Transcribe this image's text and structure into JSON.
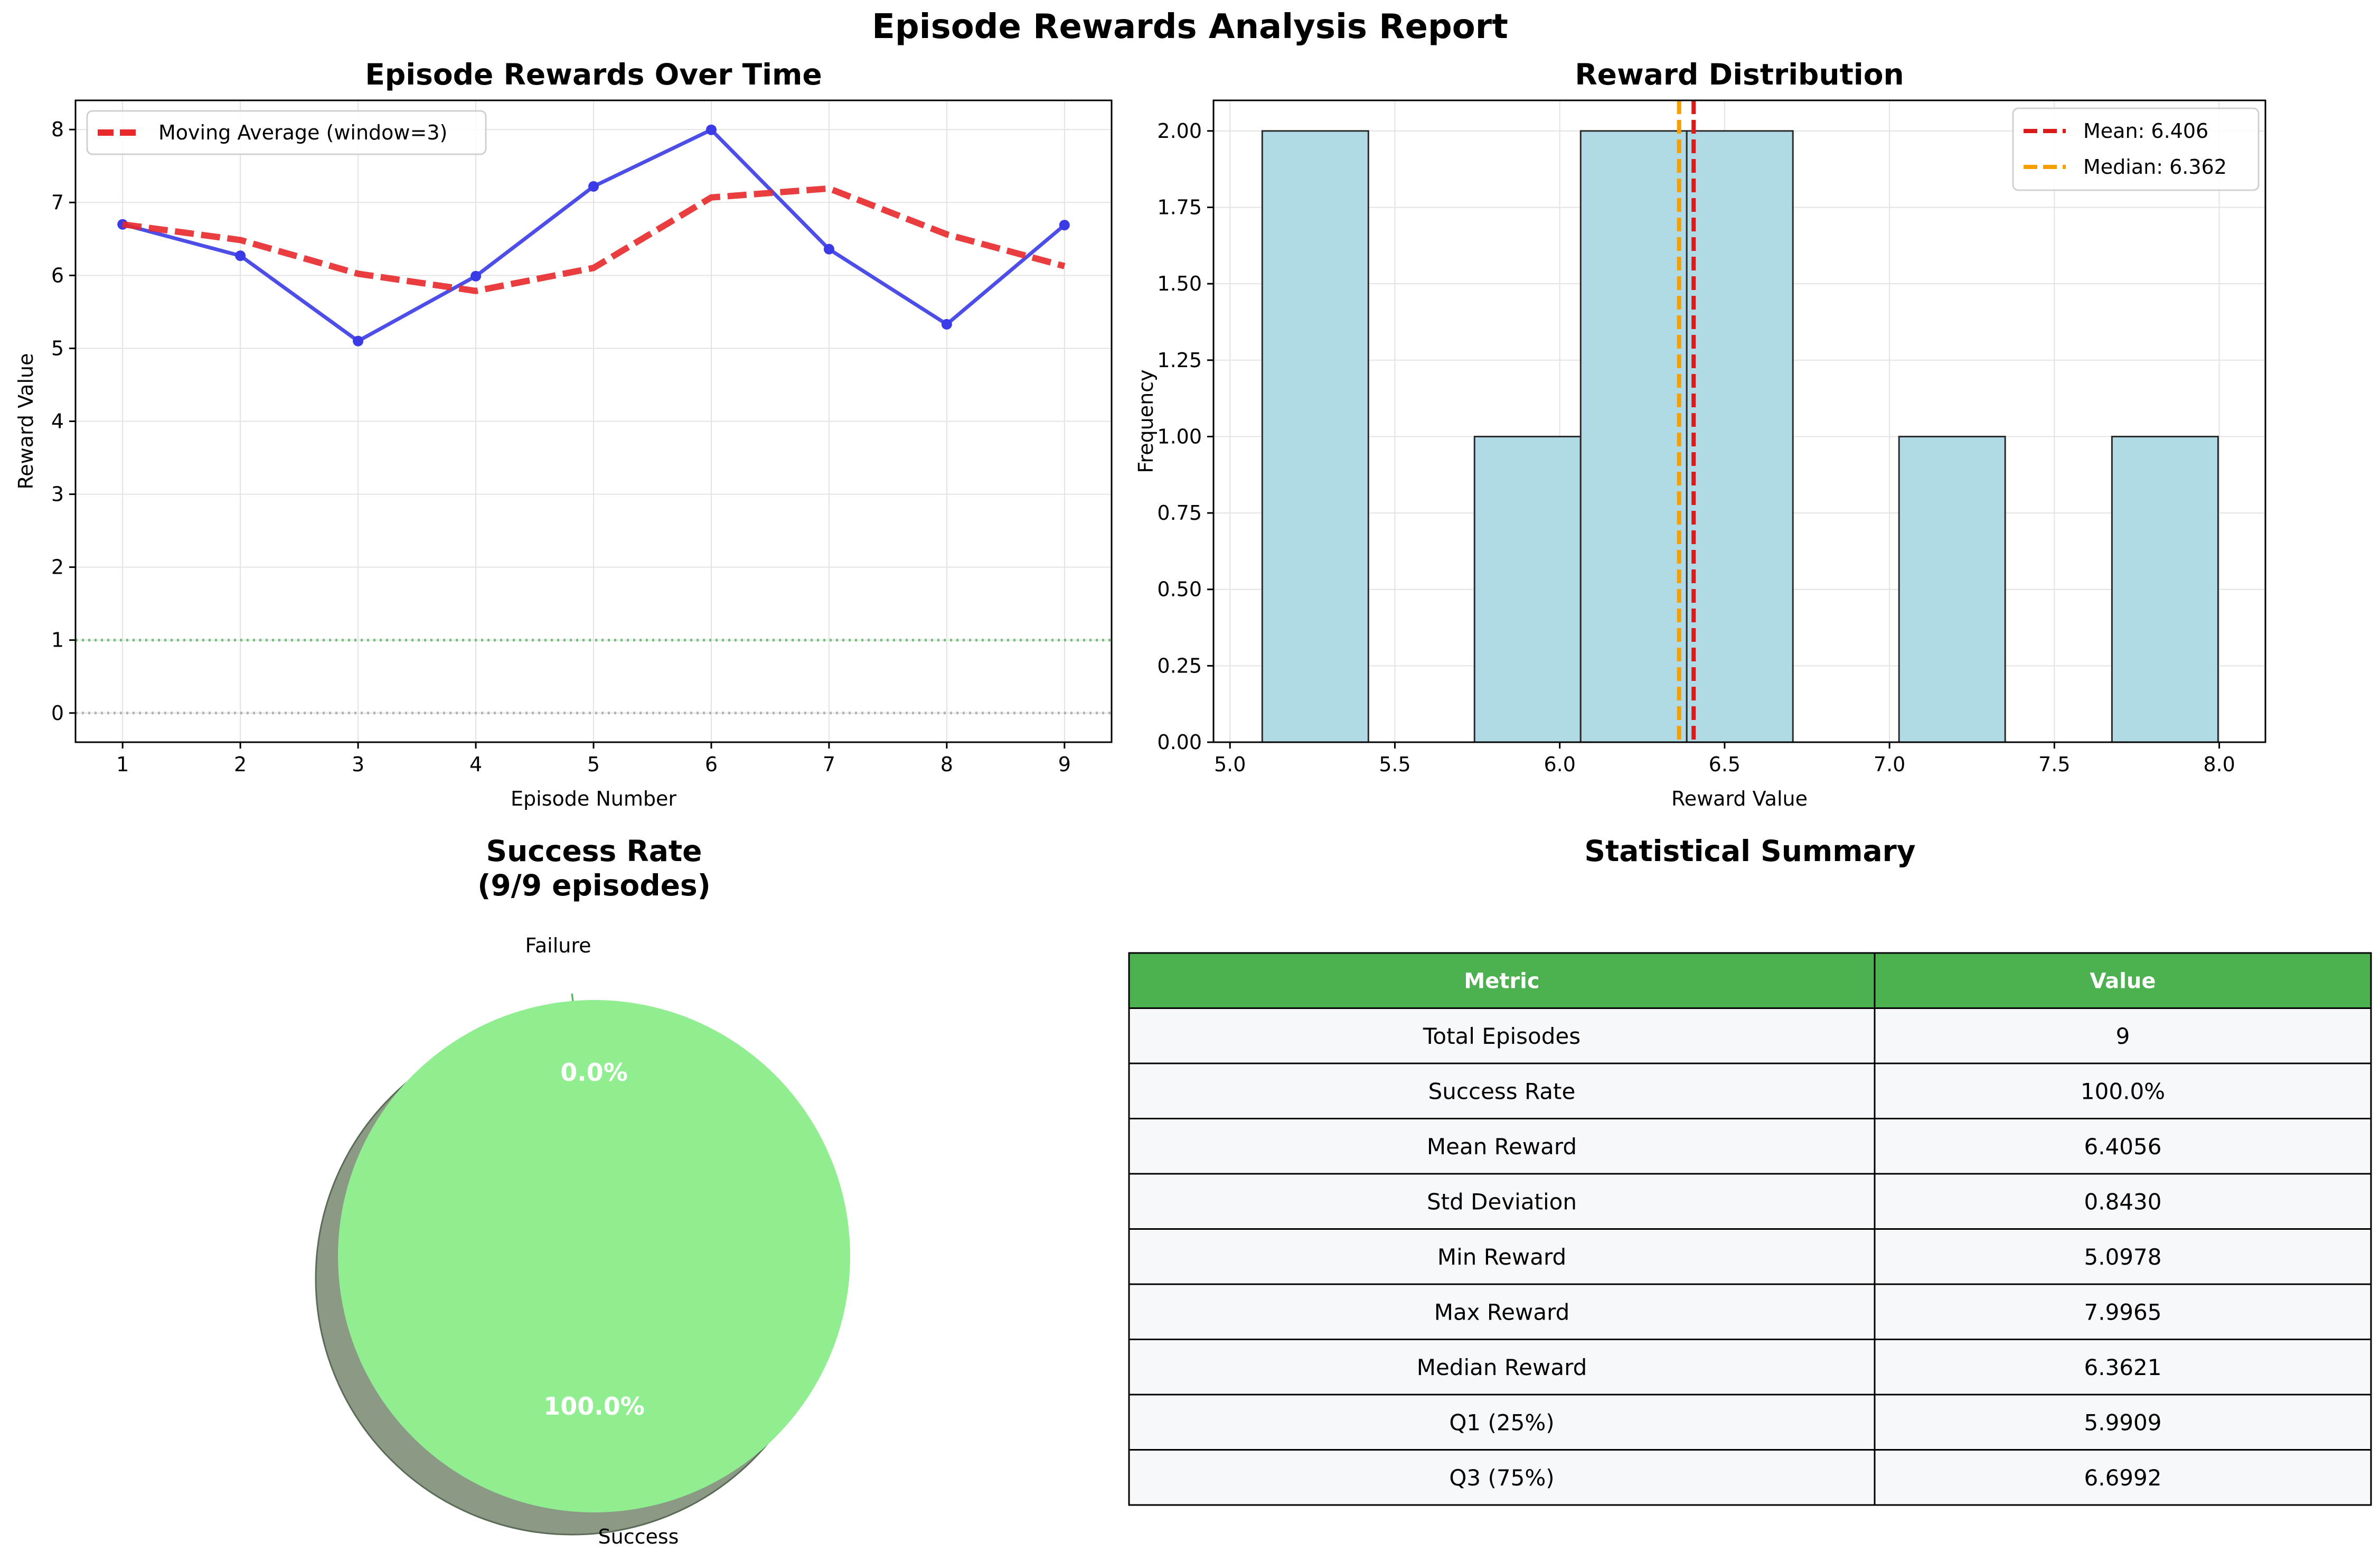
{
  "figure": {
    "title": "Episode Rewards Analysis Report"
  },
  "chart_data": [
    {
      "type": "line",
      "title": "Episode Rewards Over Time",
      "xlabel": "Episode Number",
      "ylabel": "Reward Value",
      "xlim": [
        0.6,
        9.4
      ],
      "ylim": [
        -0.4,
        8.4
      ],
      "xticks": [
        1,
        2,
        3,
        4,
        5,
        6,
        7,
        8,
        9
      ],
      "yticks": [
        0,
        1,
        2,
        3,
        4,
        5,
        6,
        7,
        8
      ],
      "grid": true,
      "legend": "upper-left",
      "x": [
        1,
        2,
        3,
        4,
        5,
        6,
        7,
        8,
        9
      ],
      "series": [
        {
          "values": [
            6.7,
            6.27,
            5.1,
            5.99,
            7.22,
            7.9965,
            6.36,
            5.33,
            6.69
          ],
          "color": "#3a3ae6",
          "style": "solid-markers"
        },
        {
          "name": "Moving Average (window=3)",
          "values": [
            6.7,
            6.485,
            6.023,
            5.787,
            6.103,
            7.069,
            7.192,
            6.563,
            6.127
          ],
          "color": "#e8282b",
          "style": "dashed"
        }
      ],
      "hlines": [
        {
          "y": 1,
          "color": "#4caf50",
          "style": "dotted"
        },
        {
          "y": 0,
          "color": "#9e9e9e",
          "style": "dotted"
        }
      ]
    },
    {
      "type": "bar",
      "subtype": "histogram",
      "title": "Reward Distribution",
      "xlabel": "Reward Value",
      "ylabel": "Frequency",
      "xlim": [
        4.95,
        8.14
      ],
      "ylim": [
        0,
        2.1
      ],
      "xticks": [
        "5.0",
        "5.5",
        "6.0",
        "6.5",
        "7.0",
        "7.5",
        "8.0"
      ],
      "yticks": [
        "0.00",
        "0.25",
        "0.50",
        "0.75",
        "1.00",
        "1.25",
        "1.50",
        "1.75",
        "2.00"
      ],
      "grid": true,
      "legend": "upper-right",
      "bin_edges": [
        5.0978,
        5.4197,
        5.7415,
        6.0634,
        6.3852,
        6.7071,
        7.0289,
        7.3508,
        7.6746,
        7.9965
      ],
      "counts": [
        2,
        0,
        1,
        2,
        2,
        0,
        1,
        0,
        1
      ],
      "bar_color": "#add8e6",
      "vlines": [
        {
          "name": "Mean: 6.406",
          "x": 6.406,
          "color": "#dd1a1a"
        },
        {
          "name": "Median: 6.362",
          "x": 6.362,
          "color": "#f5a000"
        }
      ]
    },
    {
      "type": "pie",
      "title_line1": "Success Rate",
      "title_line2": "(9/9 episodes)",
      "slices": [
        {
          "label": "Success",
          "value": 100.0,
          "pct_label": "100.0%",
          "color": "#90ee90"
        },
        {
          "label": "Failure",
          "value": 0.0,
          "pct_label": "0.0%",
          "color": "#ff7f7f"
        }
      ],
      "shadow": true
    },
    {
      "type": "table",
      "title": "Statistical Summary",
      "columns": [
        "Metric",
        "Value"
      ],
      "header_color": "#4caf50",
      "rows": [
        [
          "Total Episodes",
          "9"
        ],
        [
          "Success Rate",
          "100.0%"
        ],
        [
          "Mean Reward",
          "6.4056"
        ],
        [
          "Std Deviation",
          "0.8430"
        ],
        [
          "Min Reward",
          "5.0978"
        ],
        [
          "Max Reward",
          "7.9965"
        ],
        [
          "Median Reward",
          "6.3621"
        ],
        [
          "Q1 (25%)",
          "5.9909"
        ],
        [
          "Q3 (75%)",
          "6.6992"
        ]
      ]
    }
  ]
}
